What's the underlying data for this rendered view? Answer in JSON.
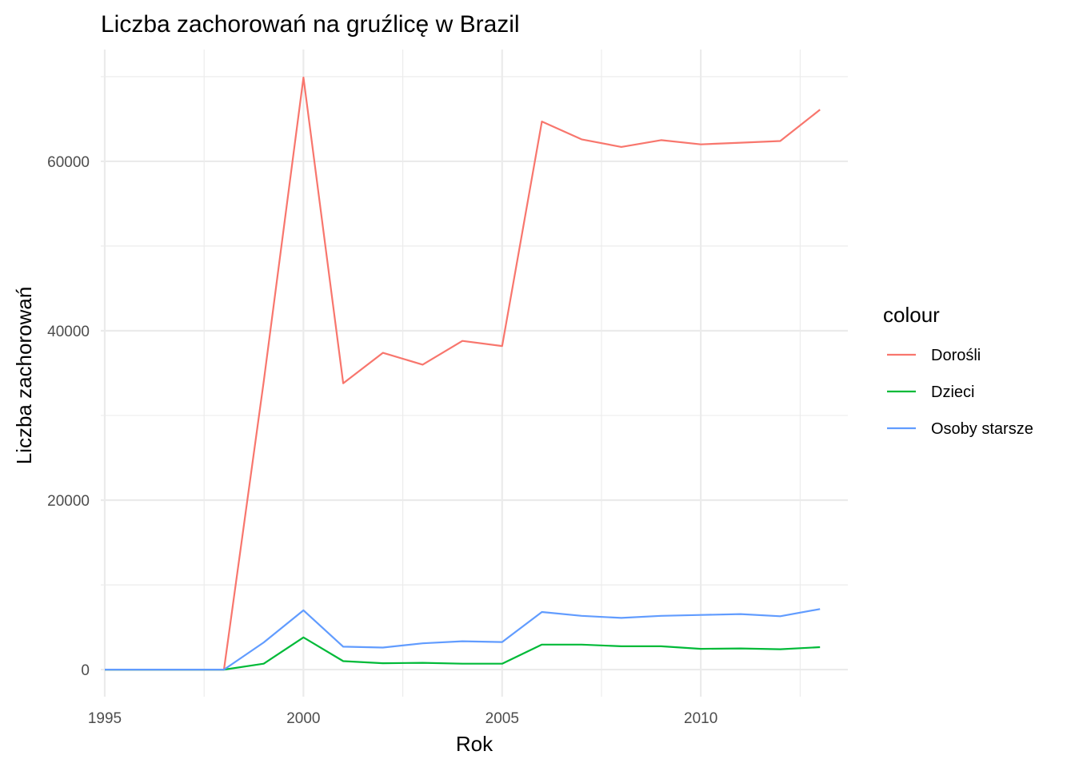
{
  "chart_data": {
    "type": "line",
    "title": "Liczba zachorowań na gruźlicę w Brazil",
    "xlabel": "Rok",
    "ylabel": "Liczba zachorowań",
    "xlim": [
      1994.9,
      2013.7
    ],
    "ylim": [
      -3200,
      73200
    ],
    "x_ticks": [
      1995,
      2000,
      2005,
      2010
    ],
    "x_tick_labels": [
      "1995",
      "2000",
      "2005",
      "2010"
    ],
    "x_minor_ticks": [
      1997.5,
      2002.5,
      2007.5,
      2012.5
    ],
    "y_ticks": [
      0,
      20000,
      40000,
      60000
    ],
    "y_tick_labels": [
      "0",
      "20000",
      "40000",
      "60000"
    ],
    "y_minor_ticks": [
      10000,
      30000,
      50000,
      70000
    ],
    "grid": true,
    "legend": {
      "title": "colour",
      "position": "right"
    },
    "x": [
      1995,
      1996,
      1997,
      1998,
      1999,
      2000,
      2001,
      2002,
      2003,
      2004,
      2005,
      2006,
      2007,
      2008,
      2009,
      2010,
      2011,
      2012,
      2013
    ],
    "series": [
      {
        "name": "Dorośli",
        "color": "#F8766D",
        "values": [
          0,
          0,
          0,
          0,
          34000,
          69900,
          33800,
          37400,
          36000,
          38800,
          38200,
          64700,
          62600,
          61700,
          62500,
          62000,
          62200,
          62400,
          66100
        ]
      },
      {
        "name": "Dzieci",
        "color": "#00BA38",
        "values": [
          0,
          0,
          0,
          0,
          700,
          3800,
          1000,
          750,
          800,
          700,
          700,
          2950,
          2950,
          2750,
          2750,
          2450,
          2500,
          2400,
          2650
        ]
      },
      {
        "name": "Osoby starsze",
        "color": "#619CFF",
        "values": [
          0,
          0,
          0,
          0,
          3200,
          7000,
          2700,
          2600,
          3100,
          3350,
          3250,
          6800,
          6350,
          6100,
          6350,
          6450,
          6550,
          6300,
          7150
        ]
      }
    ]
  }
}
